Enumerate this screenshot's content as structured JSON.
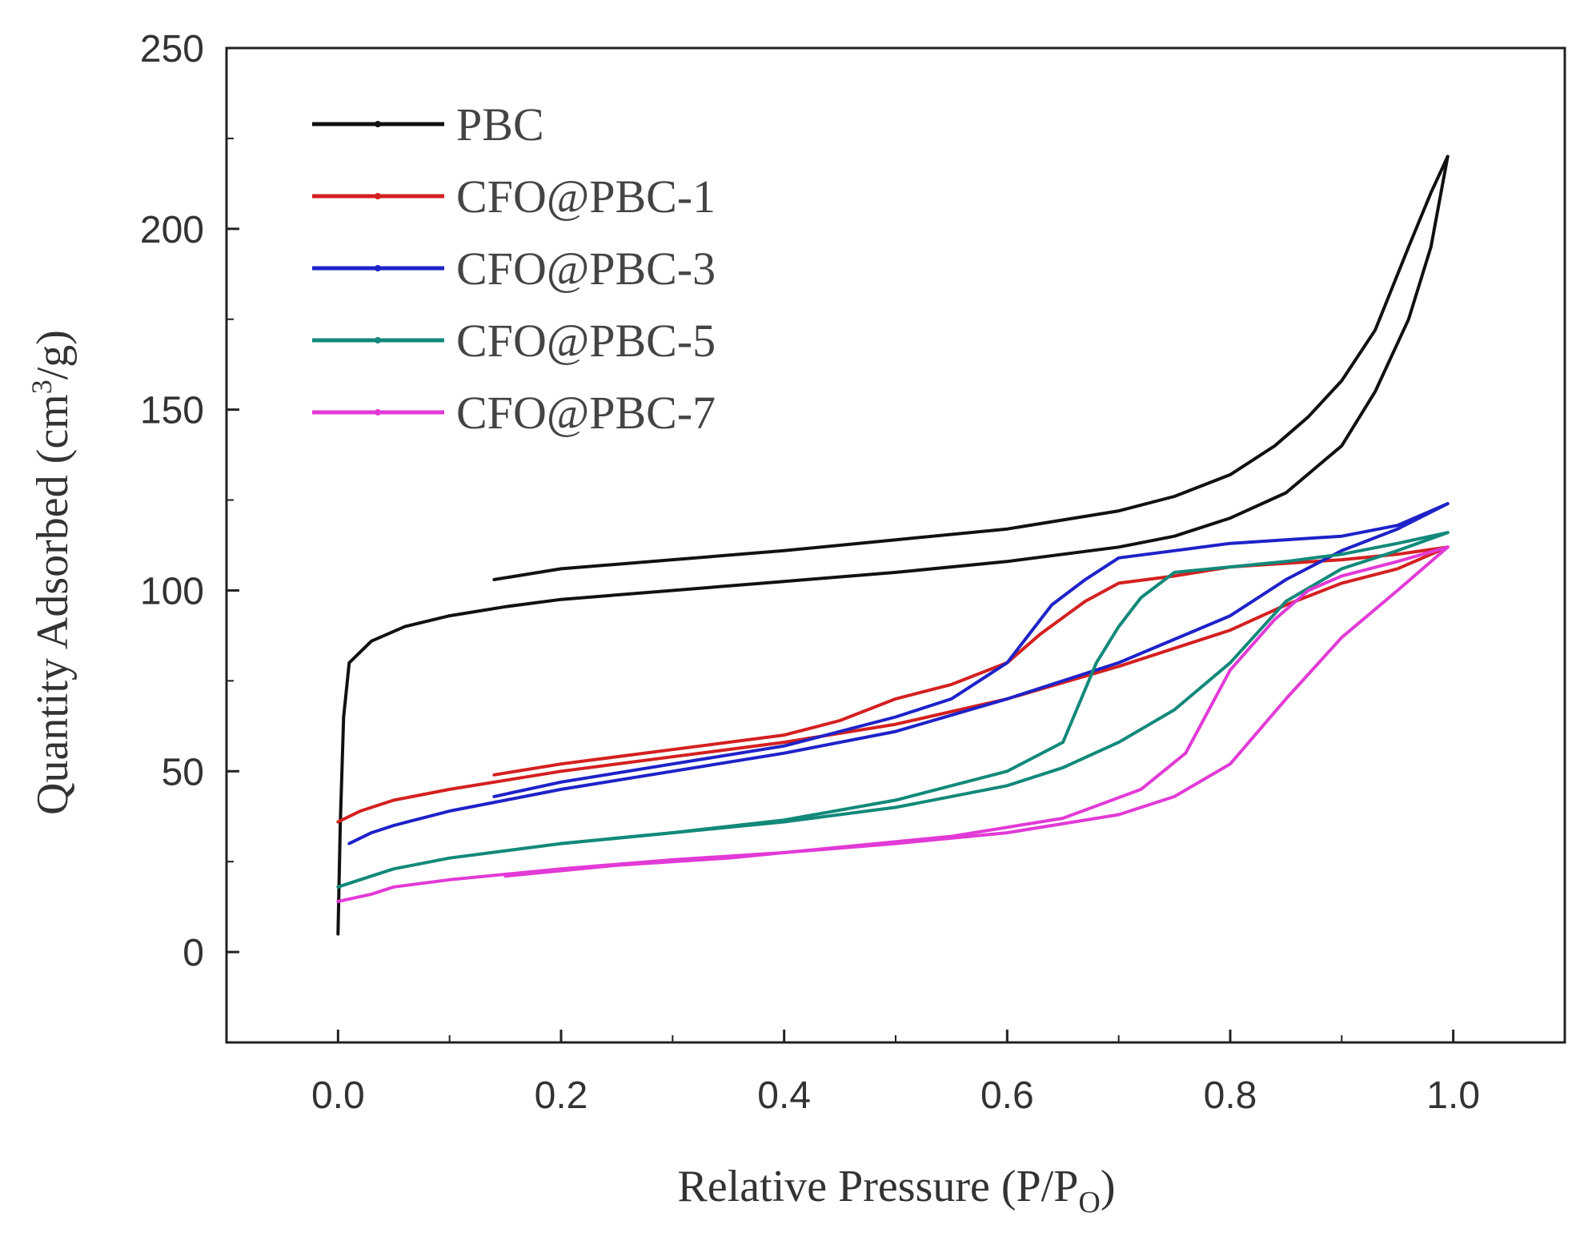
{
  "chart_data": {
    "type": "line",
    "title": "",
    "xlabel": "Relative Pressure (P/P",
    "xlabel_sub": "O",
    "xlabel_close": ")",
    "ylabel": "Quantity Adsorbed (cm",
    "ylabel_sup": "3",
    "ylabel_close": "/g)",
    "xlim": [
      -0.1,
      1.1
    ],
    "ylim": [
      -25,
      250
    ],
    "xticks": [
      0.0,
      0.2,
      0.4,
      0.6,
      0.8,
      1.0
    ],
    "xtick_labels": [
      "0.0",
      "0.2",
      "0.4",
      "0.6",
      "0.8",
      "1.0"
    ],
    "yticks": [
      0,
      50,
      100,
      150,
      200,
      250
    ],
    "ytick_labels": [
      "0",
      "50",
      "100",
      "150",
      "200",
      "250"
    ],
    "grid": false,
    "legend_position": "top-left",
    "series": [
      {
        "name": "PBC",
        "color": "#111111",
        "adsorption": [
          [
            0.0,
            5
          ],
          [
            0.002,
            35
          ],
          [
            0.005,
            65
          ],
          [
            0.01,
            80
          ],
          [
            0.03,
            86
          ],
          [
            0.06,
            90
          ],
          [
            0.1,
            93
          ],
          [
            0.15,
            95.5
          ],
          [
            0.2,
            97.5
          ],
          [
            0.3,
            100
          ],
          [
            0.4,
            102.5
          ],
          [
            0.5,
            105
          ],
          [
            0.6,
            108
          ],
          [
            0.7,
            112
          ],
          [
            0.75,
            115
          ],
          [
            0.8,
            120
          ],
          [
            0.85,
            127
          ],
          [
            0.9,
            140
          ],
          [
            0.93,
            155
          ],
          [
            0.96,
            175
          ],
          [
            0.98,
            195
          ],
          [
            0.995,
            220
          ]
        ],
        "desorption": [
          [
            0.995,
            220
          ],
          [
            0.98,
            210
          ],
          [
            0.96,
            195
          ],
          [
            0.93,
            172
          ],
          [
            0.9,
            158
          ],
          [
            0.87,
            148
          ],
          [
            0.84,
            140
          ],
          [
            0.8,
            132
          ],
          [
            0.75,
            126
          ],
          [
            0.7,
            122
          ],
          [
            0.6,
            117
          ],
          [
            0.5,
            114
          ],
          [
            0.4,
            111
          ],
          [
            0.3,
            108.5
          ],
          [
            0.2,
            106
          ],
          [
            0.14,
            103
          ]
        ]
      },
      {
        "name": "CFO@PBC-1",
        "color": "#d42020",
        "adsorption": [
          [
            0.0,
            36
          ],
          [
            0.02,
            39
          ],
          [
            0.05,
            42
          ],
          [
            0.1,
            45
          ],
          [
            0.2,
            50
          ],
          [
            0.3,
            54
          ],
          [
            0.4,
            58
          ],
          [
            0.5,
            63
          ],
          [
            0.6,
            70
          ],
          [
            0.7,
            79
          ],
          [
            0.8,
            89
          ],
          [
            0.85,
            96
          ],
          [
            0.9,
            102
          ],
          [
            0.95,
            106
          ],
          [
            0.995,
            112
          ]
        ],
        "desorption": [
          [
            0.995,
            112
          ],
          [
            0.95,
            110
          ],
          [
            0.9,
            108.5
          ],
          [
            0.8,
            106.5
          ],
          [
            0.75,
            104
          ],
          [
            0.7,
            102
          ],
          [
            0.67,
            97
          ],
          [
            0.63,
            88
          ],
          [
            0.6,
            80
          ],
          [
            0.55,
            74
          ],
          [
            0.5,
            70
          ],
          [
            0.45,
            64
          ],
          [
            0.4,
            60
          ],
          [
            0.3,
            56
          ],
          [
            0.2,
            52
          ],
          [
            0.14,
            49
          ]
        ]
      },
      {
        "name": "CFO@PBC-3",
        "color": "#1e22c8",
        "adsorption": [
          [
            0.01,
            30
          ],
          [
            0.03,
            33
          ],
          [
            0.05,
            35
          ],
          [
            0.1,
            39
          ],
          [
            0.2,
            45
          ],
          [
            0.3,
            50
          ],
          [
            0.4,
            55
          ],
          [
            0.5,
            61
          ],
          [
            0.6,
            70
          ],
          [
            0.7,
            80
          ],
          [
            0.8,
            93
          ],
          [
            0.85,
            103
          ],
          [
            0.9,
            111
          ],
          [
            0.95,
            117
          ],
          [
            0.995,
            124
          ]
        ],
        "desorption": [
          [
            0.995,
            124
          ],
          [
            0.95,
            118
          ],
          [
            0.9,
            115
          ],
          [
            0.8,
            113
          ],
          [
            0.75,
            111
          ],
          [
            0.7,
            109
          ],
          [
            0.67,
            103
          ],
          [
            0.64,
            96
          ],
          [
            0.6,
            80
          ],
          [
            0.55,
            70
          ],
          [
            0.5,
            65
          ],
          [
            0.4,
            57
          ],
          [
            0.3,
            52
          ],
          [
            0.2,
            47
          ],
          [
            0.14,
            43
          ]
        ]
      },
      {
        "name": "CFO@PBC-5",
        "color": "#12897a",
        "adsorption": [
          [
            0.0,
            18
          ],
          [
            0.03,
            21
          ],
          [
            0.05,
            23
          ],
          [
            0.1,
            26
          ],
          [
            0.2,
            30
          ],
          [
            0.3,
            33
          ],
          [
            0.4,
            36
          ],
          [
            0.5,
            40
          ],
          [
            0.6,
            46
          ],
          [
            0.65,
            51
          ],
          [
            0.7,
            58
          ],
          [
            0.75,
            67
          ],
          [
            0.8,
            80
          ],
          [
            0.85,
            97
          ],
          [
            0.9,
            106
          ],
          [
            0.95,
            111
          ],
          [
            0.995,
            116
          ]
        ],
        "desorption": [
          [
            0.995,
            116
          ],
          [
            0.95,
            113
          ],
          [
            0.9,
            110
          ],
          [
            0.85,
            108
          ],
          [
            0.8,
            106.5
          ],
          [
            0.75,
            105
          ],
          [
            0.72,
            98
          ],
          [
            0.7,
            90
          ],
          [
            0.68,
            80
          ],
          [
            0.65,
            58
          ],
          [
            0.6,
            50
          ],
          [
            0.5,
            42
          ],
          [
            0.4,
            36.5
          ],
          [
            0.3,
            33
          ],
          [
            0.2,
            30
          ]
        ]
      },
      {
        "name": "CFO@PBC-7",
        "color": "#e23ad6",
        "adsorption": [
          [
            0.0,
            14
          ],
          [
            0.03,
            16
          ],
          [
            0.05,
            18
          ],
          [
            0.1,
            20
          ],
          [
            0.2,
            23
          ],
          [
            0.3,
            25.5
          ],
          [
            0.4,
            27.5
          ],
          [
            0.5,
            30
          ],
          [
            0.6,
            33
          ],
          [
            0.7,
            38
          ],
          [
            0.75,
            43
          ],
          [
            0.8,
            52
          ],
          [
            0.85,
            70
          ],
          [
            0.9,
            87
          ],
          [
            0.95,
            100
          ],
          [
            0.995,
            112
          ]
        ],
        "desorption": [
          [
            0.995,
            112
          ],
          [
            0.95,
            108
          ],
          [
            0.9,
            104
          ],
          [
            0.87,
            100
          ],
          [
            0.84,
            92
          ],
          [
            0.8,
            78
          ],
          [
            0.76,
            55
          ],
          [
            0.72,
            45
          ],
          [
            0.65,
            37
          ],
          [
            0.55,
            32
          ],
          [
            0.45,
            29
          ],
          [
            0.35,
            26
          ],
          [
            0.25,
            24
          ],
          [
            0.15,
            21
          ]
        ]
      }
    ]
  }
}
